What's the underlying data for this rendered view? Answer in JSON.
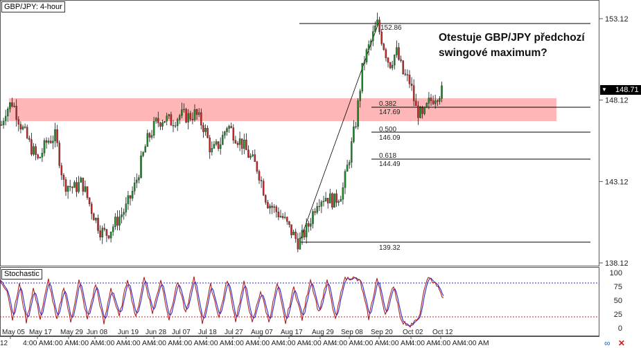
{
  "header": {
    "symbol": "GBP/JPY: 4-hour"
  },
  "annotation": {
    "line1": "Otestuje GBP/JPY předchozí",
    "line2": "swingové maximum?"
  },
  "last_price": "148.71",
  "stochastic": {
    "title": "Stochastic",
    "levels": [
      "100",
      "75",
      "50",
      "25",
      "0"
    ]
  },
  "fib_labels": {
    "high": "152.86",
    "r382": "0.382",
    "r382_val": "147.69",
    "r500": "0.500",
    "r500_val": "146.09",
    "r618": "0.618",
    "r618_val": "144.49",
    "low": "139.32"
  },
  "icons": [
    "link-icon",
    "close-icon"
  ],
  "colors": {
    "zone": "#ff9e9e",
    "up": "#1f8a2a",
    "down": "#c62828",
    "k": "#b02020",
    "d": "#2a2ad0"
  },
  "chart_data": {
    "type": "candlestick",
    "symbol": "GBP/JPY",
    "timeframe": "4-hour",
    "price_ticks": [
      153.12,
      148.12,
      143.12,
      138.12
    ],
    "ylim": [
      137.55,
      154.25
    ],
    "x_labels": [
      "May 05",
      "May 17",
      "May 29",
      "Jun 08",
      "Jun 19",
      "Jun 28",
      "Jul 07",
      "Jul 18",
      "Jul 27",
      "Aug 07",
      "Aug 17",
      "Aug 29",
      "Sep 08",
      "Sep 20",
      "Oct 02",
      "Oct 12"
    ],
    "bottom_time_label": "4:00 AM",
    "bottom_left_fragment": "12",
    "swing_high": 152.86,
    "swing_low": 139.32,
    "fib_levels": [
      {
        "ratio": 0.382,
        "price": 147.69
      },
      {
        "ratio": 0.5,
        "price": 146.09
      },
      {
        "ratio": 0.618,
        "price": 144.49
      }
    ],
    "resistance_zone": [
      146.8,
      148.2
    ],
    "price_path": [
      [
        0,
        146.3
      ],
      [
        8,
        147.5
      ],
      [
        18,
        148.0
      ],
      [
        30,
        146.6
      ],
      [
        45,
        145.2
      ],
      [
        55,
        144.4
      ],
      [
        68,
        145.6
      ],
      [
        80,
        145.9
      ],
      [
        92,
        143.0
      ],
      [
        108,
        142.7
      ],
      [
        118,
        143.1
      ],
      [
        132,
        141.4
      ],
      [
        145,
        140.1
      ],
      [
        155,
        139.9
      ],
      [
        170,
        140.8
      ],
      [
        182,
        141.5
      ],
      [
        195,
        142.9
      ],
      [
        205,
        144.5
      ],
      [
        212,
        145.6
      ],
      [
        225,
        146.7
      ],
      [
        236,
        147.0
      ],
      [
        248,
        146.8
      ],
      [
        260,
        147.2
      ],
      [
        272,
        147.1
      ],
      [
        282,
        147.3
      ],
      [
        295,
        146.4
      ],
      [
        305,
        144.9
      ],
      [
        318,
        145.5
      ],
      [
        328,
        146.6
      ],
      [
        342,
        145.8
      ],
      [
        350,
        145.4
      ],
      [
        358,
        144.8
      ],
      [
        372,
        143.9
      ],
      [
        385,
        141.9
      ],
      [
        396,
        141.4
      ],
      [
        408,
        140.9
      ],
      [
        418,
        140.2
      ],
      [
        431,
        139.32
      ],
      [
        445,
        140.4
      ],
      [
        458,
        142.0
      ],
      [
        470,
        142.2
      ],
      [
        482,
        141.9
      ],
      [
        494,
        142.5
      ],
      [
        505,
        144.8
      ],
      [
        514,
        146.9
      ],
      [
        524,
        150.4
      ],
      [
        536,
        151.8
      ],
      [
        544,
        152.86
      ],
      [
        552,
        151.7
      ],
      [
        562,
        150.3
      ],
      [
        572,
        151.1
      ],
      [
        582,
        149.7
      ],
      [
        592,
        149.2
      ],
      [
        600,
        147.6
      ],
      [
        610,
        147.0
      ],
      [
        618,
        147.9
      ],
      [
        628,
        148.4
      ],
      [
        640,
        148.71
      ]
    ],
    "stoch_k": [
      [
        0,
        88
      ],
      [
        10,
        72
      ],
      [
        18,
        20
      ],
      [
        28,
        82
      ],
      [
        38,
        14
      ],
      [
        48,
        74
      ],
      [
        58,
        20
      ],
      [
        70,
        90
      ],
      [
        82,
        15
      ],
      [
        92,
        78
      ],
      [
        102,
        12
      ],
      [
        114,
        88
      ],
      [
        126,
        18
      ],
      [
        138,
        82
      ],
      [
        150,
        10
      ],
      [
        160,
        75
      ],
      [
        172,
        22
      ],
      [
        184,
        92
      ],
      [
        196,
        20
      ],
      [
        208,
        94
      ],
      [
        220,
        30
      ],
      [
        232,
        90
      ],
      [
        244,
        18
      ],
      [
        256,
        86
      ],
      [
        268,
        30
      ],
      [
        280,
        92
      ],
      [
        292,
        12
      ],
      [
        304,
        80
      ],
      [
        316,
        22
      ],
      [
        328,
        90
      ],
      [
        340,
        16
      ],
      [
        352,
        84
      ],
      [
        364,
        10
      ],
      [
        376,
        70
      ],
      [
        388,
        14
      ],
      [
        400,
        82
      ],
      [
        412,
        12
      ],
      [
        424,
        76
      ],
      [
        436,
        18
      ],
      [
        448,
        92
      ],
      [
        460,
        30
      ],
      [
        472,
        88
      ],
      [
        484,
        16
      ],
      [
        496,
        90
      ],
      [
        508,
        94
      ],
      [
        520,
        86
      ],
      [
        532,
        20
      ],
      [
        544,
        92
      ],
      [
        556,
        28
      ],
      [
        568,
        80
      ],
      [
        580,
        12
      ],
      [
        592,
        8
      ],
      [
        604,
        18
      ],
      [
        616,
        92
      ],
      [
        628,
        85
      ],
      [
        640,
        55
      ]
    ]
  }
}
